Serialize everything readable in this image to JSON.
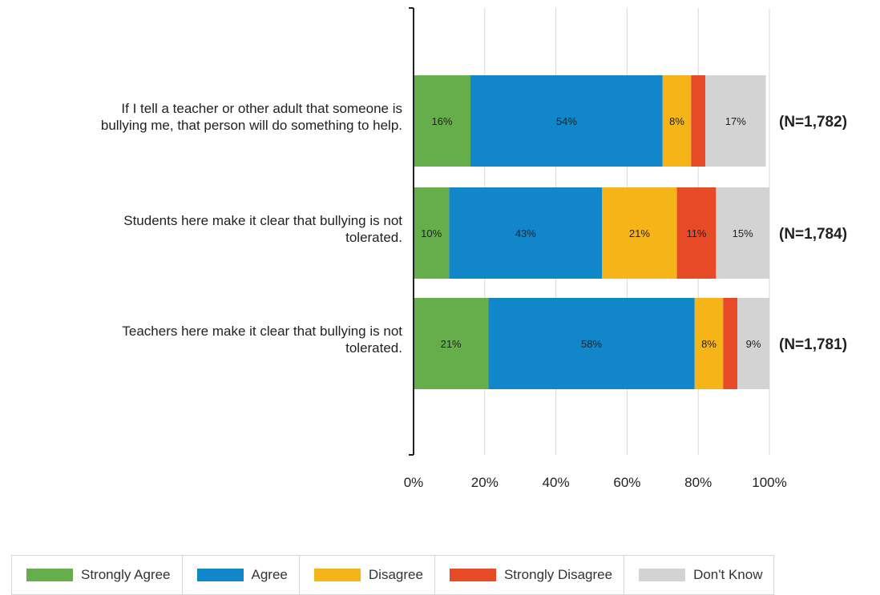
{
  "chart_data": {
    "type": "bar",
    "stacked": true,
    "orientation": "horizontal",
    "categories": [
      "If I tell a teacher or other adult that someone is bullying me, that person will do something to help.",
      "Students here make it clear that bullying is not tolerated.",
      "Teachers here make it clear that bullying is not tolerated."
    ],
    "category_lines": [
      [
        "If I tell a teacher or other adult that someone is",
        "bullying me, that person will do something to help."
      ],
      [
        "Students here make it clear that bullying is not",
        "tolerated."
      ],
      [
        "Teachers here make it clear that bullying is not",
        "tolerated."
      ]
    ],
    "series": [
      {
        "name": "Strongly Agree",
        "color": "#66ad4b",
        "values": [
          16,
          10,
          21
        ],
        "labels": [
          "16%",
          "10%",
          "21%"
        ]
      },
      {
        "name": "Agree",
        "color": "#1186c9",
        "values": [
          54,
          43,
          58
        ],
        "labels": [
          "54%",
          "43%",
          "58%"
        ]
      },
      {
        "name": "Disagree",
        "color": "#f5b519",
        "values": [
          8,
          21,
          8
        ],
        "labels": [
          "8%",
          "21%",
          "8%"
        ]
      },
      {
        "name": "Strongly Disagree",
        "color": "#e64a26",
        "values": [
          4,
          11,
          4
        ],
        "labels": [
          "",
          "11%",
          ""
        ]
      },
      {
        "name": "Don't Know",
        "color": "#d3d3d3",
        "values": [
          17,
          15,
          9
        ],
        "labels": [
          "17%",
          "15%",
          "9%"
        ]
      }
    ],
    "n_labels": [
      "(N=1,782)",
      "(N=1,784)",
      "(N=1,781)"
    ],
    "xlim": [
      0,
      100
    ],
    "xticks": [
      "0%",
      "20%",
      "40%",
      "60%",
      "80%",
      "100%"
    ],
    "grid": true,
    "legend_position": "bottom",
    "title": "",
    "xlabel": "",
    "ylabel": ""
  }
}
